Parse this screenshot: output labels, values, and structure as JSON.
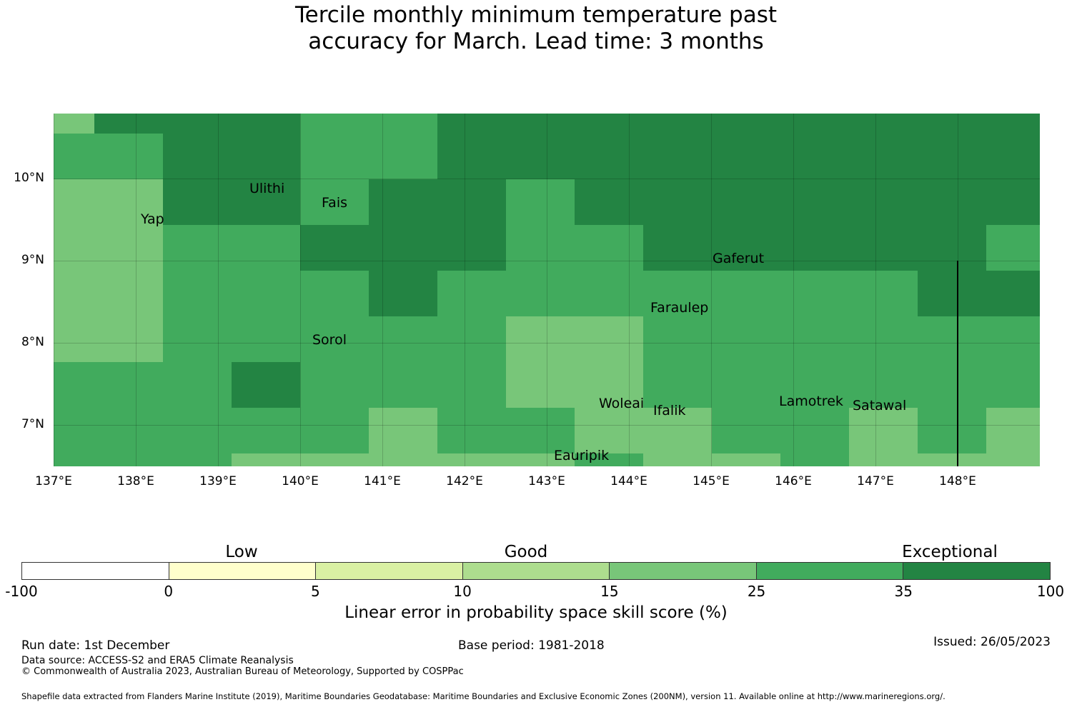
{
  "title": {
    "line1": "Tercile monthly minimum temperature past",
    "line2": "accuracy for March. Lead time: 3 months"
  },
  "map": {
    "lat_ticks": [
      "10°N",
      "9°N",
      "8°N",
      "7°N"
    ],
    "lon_ticks": [
      "137°E",
      "138°E",
      "139°E",
      "140°E",
      "141°E",
      "142°E",
      "143°E",
      "144°E",
      "145°E",
      "146°E",
      "147°E",
      "148°E"
    ],
    "grid_levels": [
      "LDDDMMDDDDDDDDD",
      "MMDDMMDDDDDDDDD",
      "LLDDMDDMDDDDDDD",
      "LLMMDDDMMDDDDDM",
      "LLMMMDMMMMMMMDD",
      "LLMMMMMLLMMMMMM",
      "MMMDMMMLLMMMMMM",
      "MMMMMLMMLLMMLML",
      "MMMLLLLLMLLMLLL"
    ],
    "level_colors": {
      "L": "#78c679",
      "M": "#41ab5d",
      "D": "#238443"
    },
    "places": [
      "Ulithi",
      "Fais",
      "Yap",
      "Gaferut",
      "Faraulep",
      "Sorol",
      "Woleai",
      "Ifalik",
      "Lamotrek",
      "Satawal",
      "Eauripik"
    ]
  },
  "legend": {
    "categories": [
      "Low",
      "Good",
      "Exceptional"
    ],
    "ticks": [
      "-100",
      "0",
      "5",
      "10",
      "15",
      "25",
      "35",
      "100"
    ],
    "colors": [
      "#ffffff",
      "#ffffcc",
      "#d9f0a3",
      "#addd8e",
      "#78c679",
      "#41ab5d",
      "#238443"
    ],
    "label": "Linear error in probability space skill score (%)"
  },
  "footer": {
    "run_date": "Run date: 1st December",
    "base_period": "Base period: 1981-2018",
    "issued": "Issued: 26/05/2023",
    "source": "Data source: ACCESS-S2 and ERA5 Climate Reanalysis",
    "copyright": "© Commonwealth of Australia 2023, Australian Bureau of Meteorology, Supported by COSPPac",
    "shapefile": "Shapefile data extracted from Flanders Marine Institute (2019), Maritime Boundaries Geodatabase: Maritime Boundaries and Exclusive Economic Zones (200NM), version 11. Available online at http://www.marineregions.org/."
  }
}
